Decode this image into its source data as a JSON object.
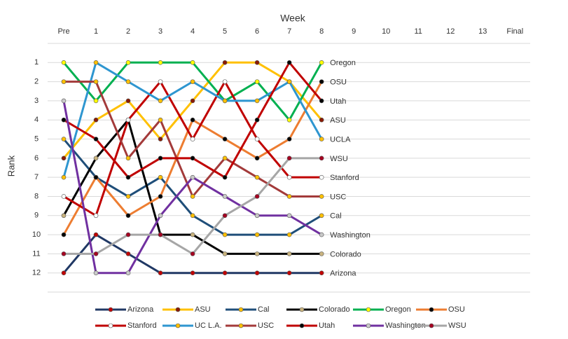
{
  "chart_data": {
    "type": "line",
    "x_label": "Week",
    "y_label": "Rank",
    "categories": [
      "Pre",
      "1",
      "2",
      "3",
      "4",
      "5",
      "6",
      "7",
      "8",
      "9",
      "10",
      "11",
      "12",
      "13",
      "Final"
    ],
    "ylim": [
      0,
      13
    ],
    "y_reversed": true,
    "yticks": [
      1,
      2,
      3,
      4,
      5,
      6,
      7,
      8,
      9,
      10,
      11,
      12
    ],
    "grid": true,
    "legend": "bottom",
    "series": [
      {
        "name": "Arizona",
        "end_label": "Arizona",
        "color": "#203864",
        "marker_color": "#c00000",
        "values": [
          12,
          10,
          11,
          12,
          12,
          12,
          12,
          12,
          12,
          null,
          null,
          null,
          null,
          null,
          null
        ]
      },
      {
        "name": "ASU",
        "end_label": "ASU",
        "color": "#ffc000",
        "marker_color": "#8b1a00",
        "values": [
          6,
          4,
          3,
          5,
          3,
          1,
          1,
          2,
          4,
          null,
          null,
          null,
          null,
          null,
          null
        ]
      },
      {
        "name": "Cal",
        "end_label": "Cal",
        "color": "#1f4e79",
        "marker_color": "#ffc000",
        "values": [
          5,
          7,
          8,
          7,
          9,
          10,
          10,
          10,
          9,
          null,
          null,
          null,
          null,
          null,
          null
        ]
      },
      {
        "name": "Colorado",
        "end_label": "Colorado",
        "color": "#000000",
        "marker_color": "#c9b37e",
        "values": [
          9,
          6,
          4,
          10,
          10,
          11,
          11,
          11,
          11,
          null,
          null,
          null,
          null,
          null,
          null
        ]
      },
      {
        "name": "Oregon",
        "end_label": "Oregon",
        "color": "#00b050",
        "marker_color": "#ffff00",
        "values": [
          1,
          3,
          1,
          1,
          1,
          3,
          2,
          4,
          1,
          null,
          null,
          null,
          null,
          null,
          null
        ]
      },
      {
        "name": "OSU",
        "end_label": "OSU",
        "color": "#ed7d31",
        "marker_color": "#000000",
        "values": [
          10,
          7,
          9,
          8,
          4,
          5,
          6,
          5,
          2,
          null,
          null,
          null,
          null,
          null,
          null
        ]
      },
      {
        "name": "Stanford",
        "end_label": "Stanford",
        "color": "#c00000",
        "marker_color": "#ffffff",
        "values": [
          8,
          9,
          4,
          2,
          5,
          2,
          5,
          7,
          7,
          null,
          null,
          null,
          null,
          null,
          null
        ]
      },
      {
        "name": "UC L.A.",
        "end_label": "UCLA",
        "color": "#2e96d0",
        "marker_color": "#ffc000",
        "values": [
          7,
          1,
          2,
          3,
          2,
          3,
          3,
          2,
          5,
          null,
          null,
          null,
          null,
          null,
          null
        ]
      },
      {
        "name": "USC",
        "end_label": "USC",
        "color": "#a33a3a",
        "marker_color": "#ffc000",
        "values": [
          2,
          2,
          6,
          4,
          8,
          6,
          7,
          8,
          8,
          null,
          null,
          null,
          null,
          null,
          null
        ]
      },
      {
        "name": "Utah",
        "end_label": "Utah",
        "color": "#c00000",
        "marker_color": "#000000",
        "values": [
          4,
          5,
          7,
          6,
          6,
          7,
          4,
          1,
          3,
          null,
          null,
          null,
          null,
          null,
          null
        ]
      },
      {
        "name": "Washington",
        "end_label": "Washington",
        "color": "#7030a0",
        "marker_color": "#c9c9c9",
        "values": [
          3,
          12,
          12,
          9,
          7,
          8,
          9,
          9,
          10,
          null,
          null,
          null,
          null,
          null,
          null
        ]
      },
      {
        "name": "WSU",
        "end_label": "WSU",
        "color": "#a6a6a6",
        "marker_color": "#a50021",
        "values": [
          11,
          11,
          10,
          10,
          11,
          9,
          8,
          6,
          6,
          null,
          null,
          null,
          null,
          null,
          null
        ]
      }
    ]
  }
}
